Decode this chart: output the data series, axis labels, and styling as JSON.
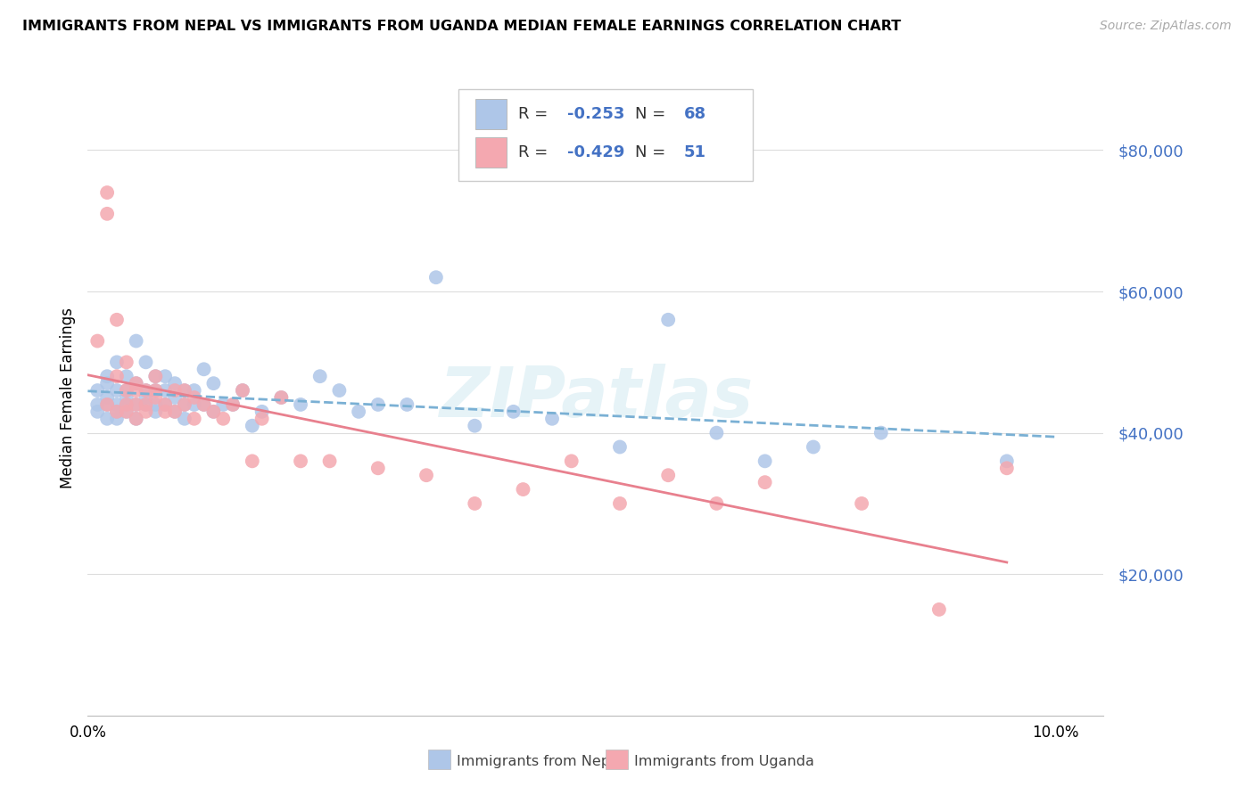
{
  "title": "IMMIGRANTS FROM NEPAL VS IMMIGRANTS FROM UGANDA MEDIAN FEMALE EARNINGS CORRELATION CHART",
  "source": "Source: ZipAtlas.com",
  "ylabel": "Median Female Earnings",
  "xlim": [
    0.0,
    0.105
  ],
  "ylim": [
    0,
    90000
  ],
  "yticks": [
    20000,
    40000,
    60000,
    80000
  ],
  "ytick_labels": [
    "$20,000",
    "$40,000",
    "$60,000",
    "$80,000"
  ],
  "xticks": [
    0.0,
    0.02,
    0.04,
    0.06,
    0.08,
    0.1
  ],
  "xtick_labels": [
    "0.0%",
    "",
    "",
    "",
    "",
    "10.0%"
  ],
  "nepal_color": "#aec6e8",
  "uganda_color": "#f4a8b0",
  "nepal_line_color": "#7ab0d4",
  "uganda_line_color": "#e8808e",
  "nepal_R": -0.253,
  "nepal_N": 68,
  "uganda_R": -0.429,
  "uganda_N": 51,
  "background_color": "#ffffff",
  "grid_color": "#dddddd",
  "watermark": "ZIPatlas",
  "tick_color": "#4472c4",
  "nepal_points_x": [
    0.001,
    0.001,
    0.001,
    0.002,
    0.002,
    0.002,
    0.002,
    0.002,
    0.003,
    0.003,
    0.003,
    0.003,
    0.003,
    0.004,
    0.004,
    0.004,
    0.004,
    0.004,
    0.005,
    0.005,
    0.005,
    0.005,
    0.006,
    0.006,
    0.006,
    0.006,
    0.007,
    0.007,
    0.007,
    0.007,
    0.008,
    0.008,
    0.008,
    0.009,
    0.009,
    0.009,
    0.01,
    0.01,
    0.01,
    0.011,
    0.011,
    0.012,
    0.012,
    0.013,
    0.013,
    0.014,
    0.015,
    0.016,
    0.017,
    0.018,
    0.02,
    0.022,
    0.024,
    0.026,
    0.028,
    0.03,
    0.033,
    0.036,
    0.04,
    0.044,
    0.048,
    0.055,
    0.06,
    0.065,
    0.07,
    0.075,
    0.082,
    0.095
  ],
  "nepal_points_y": [
    46000,
    43000,
    44000,
    47000,
    44000,
    42000,
    45000,
    48000,
    50000,
    44000,
    46000,
    43000,
    42000,
    48000,
    44000,
    46000,
    43000,
    45000,
    53000,
    47000,
    44000,
    42000,
    50000,
    45000,
    44000,
    46000,
    48000,
    44000,
    46000,
    43000,
    46000,
    44000,
    48000,
    45000,
    43000,
    47000,
    44000,
    46000,
    42000,
    44000,
    46000,
    44000,
    49000,
    47000,
    43000,
    44000,
    44000,
    46000,
    41000,
    43000,
    45000,
    44000,
    48000,
    46000,
    43000,
    44000,
    44000,
    62000,
    41000,
    43000,
    42000,
    38000,
    56000,
    40000,
    36000,
    38000,
    40000,
    36000
  ],
  "uganda_points_x": [
    0.001,
    0.002,
    0.002,
    0.002,
    0.003,
    0.003,
    0.003,
    0.004,
    0.004,
    0.004,
    0.004,
    0.005,
    0.005,
    0.005,
    0.005,
    0.006,
    0.006,
    0.006,
    0.007,
    0.007,
    0.007,
    0.008,
    0.008,
    0.009,
    0.009,
    0.01,
    0.01,
    0.011,
    0.011,
    0.012,
    0.013,
    0.014,
    0.015,
    0.016,
    0.017,
    0.018,
    0.02,
    0.022,
    0.025,
    0.03,
    0.035,
    0.04,
    0.045,
    0.05,
    0.055,
    0.06,
    0.065,
    0.07,
    0.08,
    0.088,
    0.095
  ],
  "uganda_points_y": [
    53000,
    74000,
    71000,
    44000,
    56000,
    48000,
    43000,
    50000,
    44000,
    43000,
    46000,
    47000,
    44000,
    46000,
    42000,
    46000,
    44000,
    43000,
    48000,
    45000,
    46000,
    44000,
    43000,
    46000,
    43000,
    44000,
    46000,
    42000,
    45000,
    44000,
    43000,
    42000,
    44000,
    46000,
    36000,
    42000,
    45000,
    36000,
    36000,
    35000,
    34000,
    30000,
    32000,
    36000,
    30000,
    34000,
    30000,
    33000,
    30000,
    15000,
    35000
  ]
}
